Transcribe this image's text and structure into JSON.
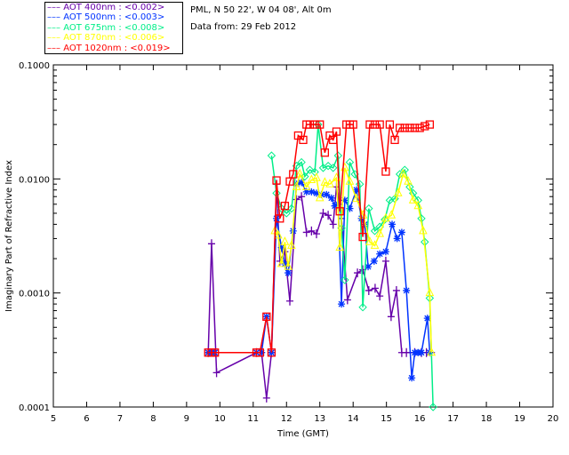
{
  "header": {
    "location": "PML, N 50 22', W 04 08', Alt 0m",
    "date": "Data from: 29 Feb 2012"
  },
  "chart_data": {
    "type": "line",
    "title": "",
    "xlabel": "Time (GMT)",
    "ylabel": "Imaginary Part of Refractive Index",
    "xlim": [
      5,
      20
    ],
    "ylim": [
      0.0001,
      0.1
    ],
    "yscale": "log",
    "xticks": [
      "5",
      "6",
      "7",
      "8",
      "9",
      "10",
      "11",
      "12",
      "13",
      "14",
      "15",
      "16",
      "17",
      "18",
      "19",
      "20"
    ],
    "yticks": [
      "0.1000",
      "0.0100",
      "0.0010",
      "0.0001"
    ],
    "legend_placement": "top-left outside",
    "series": [
      {
        "name": "AOT  400nm : <0.002>",
        "color": "#6600aa",
        "marker": "plus",
        "points": [
          [
            9.65,
            0.0003
          ],
          [
            9.75,
            0.0027
          ],
          [
            9.9,
            0.0002
          ],
          [
            11.1,
            0.0003
          ],
          [
            11.25,
            0.0003
          ],
          [
            11.4,
            0.00012
          ],
          [
            11.55,
            0.0003
          ],
          [
            11.7,
            0.009
          ],
          [
            11.8,
            0.0019
          ],
          [
            11.95,
            0.0023
          ],
          [
            12.1,
            0.00085
          ],
          [
            12.3,
            0.0066
          ],
          [
            12.45,
            0.007
          ],
          [
            12.6,
            0.0034
          ],
          [
            12.75,
            0.0035
          ],
          [
            12.9,
            0.0033
          ],
          [
            13.1,
            0.005
          ],
          [
            13.25,
            0.0048
          ],
          [
            13.4,
            0.004
          ],
          [
            13.5,
            0.0085
          ],
          [
            13.65,
            0.0045
          ],
          [
            13.83,
            0.00087
          ],
          [
            14.13,
            0.0015
          ],
          [
            14.29,
            0.0016
          ],
          [
            14.47,
            0.00105
          ],
          [
            14.66,
            0.0011
          ],
          [
            14.8,
            0.00094
          ],
          [
            14.98,
            0.0019
          ],
          [
            15.14,
            0.00062
          ],
          [
            15.3,
            0.00105
          ],
          [
            15.46,
            0.0003
          ],
          [
            15.6,
            0.0003
          ],
          [
            15.85,
            0.0003
          ],
          [
            16.05,
            0.0003
          ],
          [
            16.2,
            0.0003
          ],
          [
            16.35,
            0.0003
          ]
        ]
      },
      {
        "name": "AOT  500nm : <0.003>",
        "color": "#0033ff",
        "marker": "asterisk",
        "points": [
          [
            9.65,
            0.0003
          ],
          [
            9.75,
            0.0003
          ],
          [
            9.85,
            0.0003
          ],
          [
            11.1,
            0.0003
          ],
          [
            11.25,
            0.0003
          ],
          [
            11.4,
            0.00062
          ],
          [
            11.55,
            0.0003
          ],
          [
            11.7,
            0.0045
          ],
          [
            11.85,
            0.0025
          ],
          [
            11.95,
            0.0018
          ],
          [
            12.05,
            0.0015
          ],
          [
            12.2,
            0.0035
          ],
          [
            12.3,
            0.009
          ],
          [
            12.45,
            0.0093
          ],
          [
            12.6,
            0.0077
          ],
          [
            12.75,
            0.0077
          ],
          [
            12.9,
            0.0075
          ],
          [
            13.05,
            0.0073
          ],
          [
            13.2,
            0.0073
          ],
          [
            13.35,
            0.0068
          ],
          [
            13.45,
            0.0058
          ],
          [
            13.55,
            0.006
          ],
          [
            13.65,
            0.0008
          ],
          [
            13.75,
            0.0065
          ],
          [
            13.9,
            0.0055
          ],
          [
            14.1,
            0.008
          ],
          [
            14.25,
            0.0045
          ],
          [
            14.35,
            0.004
          ],
          [
            14.45,
            0.0017
          ],
          [
            14.63,
            0.0019
          ],
          [
            14.8,
            0.0022
          ],
          [
            14.98,
            0.0023
          ],
          [
            15.17,
            0.004
          ],
          [
            15.32,
            0.003
          ],
          [
            15.46,
            0.0034
          ],
          [
            15.6,
            0.00105
          ],
          [
            15.76,
            0.00018
          ],
          [
            15.85,
            0.0003
          ],
          [
            15.95,
            0.0003
          ],
          [
            16.05,
            0.0003
          ],
          [
            16.23,
            0.0006
          ],
          [
            16.3,
            0.0003
          ]
        ]
      },
      {
        "name": "AOT  675nm : <0.008>",
        "color": "#00ee88",
        "marker": "diamond",
        "points": [
          [
            11.55,
            0.016
          ],
          [
            11.7,
            0.0075
          ],
          [
            11.85,
            0.0055
          ],
          [
            12.0,
            0.005
          ],
          [
            12.15,
            0.0055
          ],
          [
            12.3,
            0.013
          ],
          [
            12.45,
            0.014
          ],
          [
            12.55,
            0.0105
          ],
          [
            12.7,
            0.012
          ],
          [
            12.85,
            0.0115
          ],
          [
            12.95,
            0.03
          ],
          [
            13.1,
            0.0125
          ],
          [
            13.25,
            0.013
          ],
          [
            13.4,
            0.0125
          ],
          [
            13.55,
            0.016
          ],
          [
            13.65,
            0.0037
          ],
          [
            13.75,
            0.0013
          ],
          [
            13.9,
            0.014
          ],
          [
            14.05,
            0.011
          ],
          [
            14.2,
            0.009
          ],
          [
            14.29,
            0.00075
          ],
          [
            14.47,
            0.0055
          ],
          [
            14.65,
            0.0035
          ],
          [
            14.8,
            0.0038
          ],
          [
            14.95,
            0.0044
          ],
          [
            15.1,
            0.0065
          ],
          [
            15.25,
            0.0067
          ],
          [
            15.4,
            0.011
          ],
          [
            15.55,
            0.012
          ],
          [
            15.7,
            0.0085
          ],
          [
            15.8,
            0.0075
          ],
          [
            15.95,
            0.0065
          ],
          [
            16.05,
            0.0045
          ],
          [
            16.15,
            0.0028
          ],
          [
            16.3,
            0.0009
          ],
          [
            16.4,
            0.0001
          ]
        ]
      },
      {
        "name": "AOT  870nm : <0.006>",
        "color": "#ffff00",
        "marker": "triangle",
        "points": [
          [
            11.65,
            0.0035
          ],
          [
            11.75,
            0.0032
          ],
          [
            11.85,
            0.0018
          ],
          [
            11.95,
            0.0028
          ],
          [
            12.05,
            0.0017
          ],
          [
            12.15,
            0.0026
          ],
          [
            12.3,
            0.0085
          ],
          [
            12.4,
            0.011
          ],
          [
            12.6,
            0.0085
          ],
          [
            12.75,
            0.0098
          ],
          [
            12.9,
            0.0102
          ],
          [
            13.0,
            0.0068
          ],
          [
            13.15,
            0.0093
          ],
          [
            13.3,
            0.009
          ],
          [
            13.5,
            0.0102
          ],
          [
            13.6,
            0.0025
          ],
          [
            13.75,
            0.0125
          ],
          [
            13.9,
            0.0095
          ],
          [
            14.1,
            0.0067
          ],
          [
            14.3,
            0.0048
          ],
          [
            14.5,
            0.0028
          ],
          [
            14.65,
            0.0026
          ],
          [
            14.8,
            0.0033
          ],
          [
            14.98,
            0.0045
          ],
          [
            15.15,
            0.0048
          ],
          [
            15.35,
            0.0075
          ],
          [
            15.5,
            0.011
          ],
          [
            15.65,
            0.0095
          ],
          [
            15.8,
            0.0065
          ],
          [
            15.95,
            0.0058
          ],
          [
            16.1,
            0.0035
          ],
          [
            16.3,
            0.001
          ],
          [
            16.35,
            0.0003
          ]
        ]
      },
      {
        "name": "AOT 1020nm : <0.019>",
        "color": "#ff0000",
        "marker": "square",
        "points": [
          [
            9.65,
            0.0003
          ],
          [
            9.75,
            0.0003
          ],
          [
            9.85,
            0.0003
          ],
          [
            11.1,
            0.0003
          ],
          [
            11.2,
            0.0003
          ],
          [
            11.4,
            0.00062
          ],
          [
            11.55,
            0.0003
          ],
          [
            11.7,
            0.0097
          ],
          [
            11.8,
            0.0045
          ],
          [
            11.95,
            0.0058
          ],
          [
            12.1,
            0.0095
          ],
          [
            12.2,
            0.011
          ],
          [
            12.35,
            0.024
          ],
          [
            12.5,
            0.022
          ],
          [
            12.6,
            0.03
          ],
          [
            12.7,
            0.03
          ],
          [
            12.85,
            0.03
          ],
          [
            13.0,
            0.03
          ],
          [
            13.15,
            0.017
          ],
          [
            13.3,
            0.024
          ],
          [
            13.4,
            0.022
          ],
          [
            13.5,
            0.026
          ],
          [
            13.6,
            0.0052
          ],
          [
            13.8,
            0.03
          ],
          [
            13.9,
            0.03
          ],
          [
            14.0,
            0.03
          ],
          [
            14.29,
            0.0031
          ],
          [
            14.5,
            0.03
          ],
          [
            14.65,
            0.03
          ],
          [
            14.8,
            0.03
          ],
          [
            14.98,
            0.0116
          ],
          [
            15.1,
            0.03
          ],
          [
            15.25,
            0.022
          ],
          [
            15.4,
            0.028
          ],
          [
            15.55,
            0.028
          ],
          [
            15.7,
            0.028
          ],
          [
            15.85,
            0.028
          ],
          [
            16.0,
            0.028
          ],
          [
            16.15,
            0.029
          ],
          [
            16.3,
            0.03
          ]
        ]
      }
    ]
  }
}
